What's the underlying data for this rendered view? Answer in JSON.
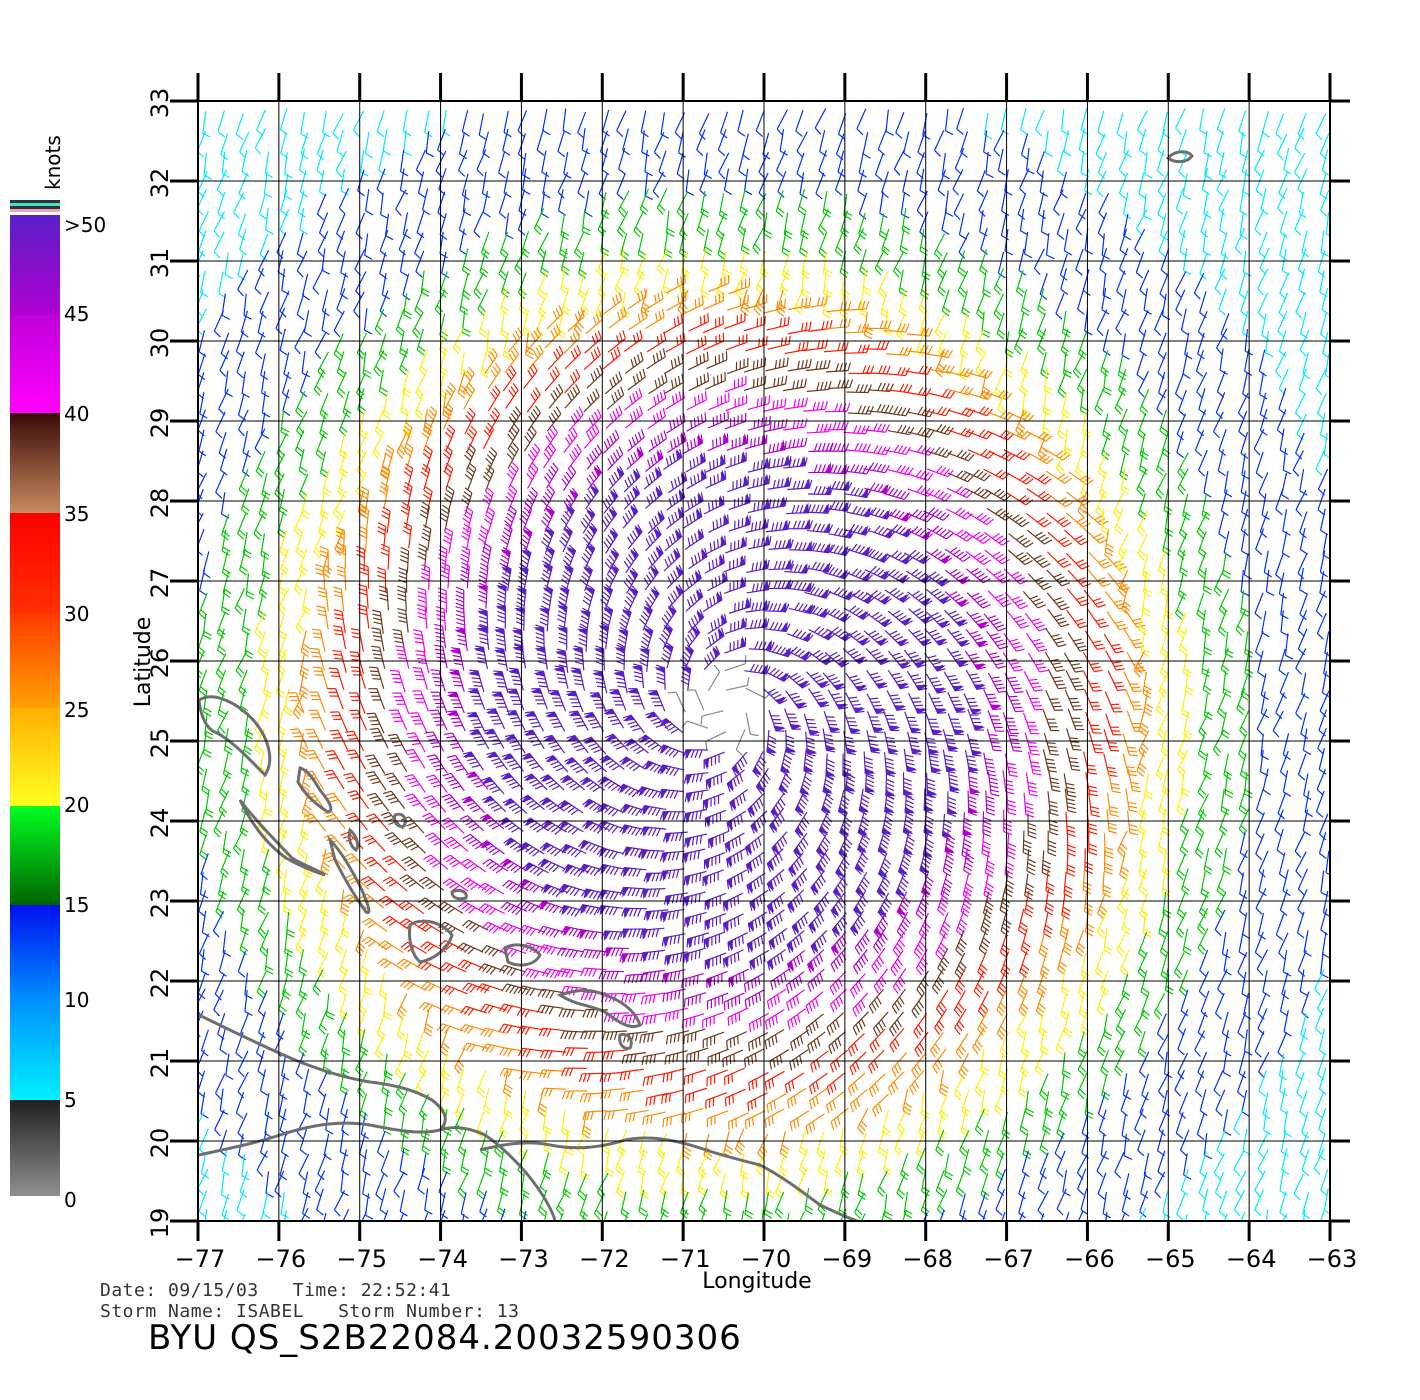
{
  "map": {
    "xlabel": "Longitude",
    "ylabel": "Latitude",
    "lon_ticks": [
      "-77",
      "-76",
      "-75",
      "-74",
      "-73",
      "-72",
      "-71",
      "-70",
      "-69",
      "-68",
      "-67",
      "-66",
      "-65",
      "-64",
      "-63"
    ],
    "lat_ticks": [
      "19",
      "20",
      "21",
      "22",
      "23",
      "24",
      "25",
      "26",
      "27",
      "28",
      "29",
      "30",
      "31",
      "32",
      "33"
    ],
    "lon_range": [
      -77,
      -63
    ],
    "lat_range": [
      19,
      33
    ],
    "storm_center": {
      "lon": -70.5,
      "lat": 25.4
    },
    "wind_field": "cyclonic, counter-clockwise barbs"
  },
  "legend": {
    "unit": "knots",
    "labels": [
      ">50",
      "45",
      "40",
      "35",
      "30",
      "25",
      "20",
      "15",
      "10",
      "5",
      "0"
    ],
    "colors": {
      "gt50": "#5a1fc9",
      "45": "#b000d0",
      "40": "#f000f0",
      "35": "#6b3a1e",
      "30": "#ff1a00",
      "25": "#ff8a00",
      "20": "#ffee00",
      "15": "#00c800",
      "10": "#0030ff",
      "5": "#00e8ff",
      "0": "#888888"
    }
  },
  "info": {
    "date_line": "Date: 09/15/03   Time: 22:52:41",
    "storm_line": "Storm Name: ISABEL   Storm Number: 13",
    "product_id": "BYU QS_S2B22084.20032590306"
  }
}
